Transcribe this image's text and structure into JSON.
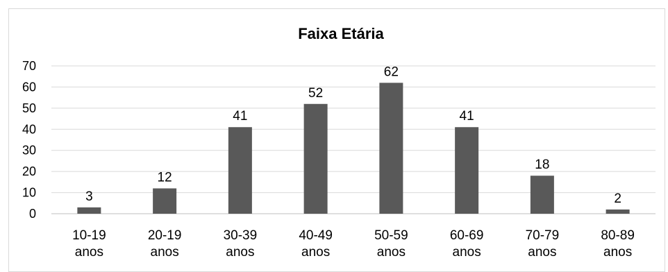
{
  "chart_data": {
    "type": "bar",
    "title": "Faixa Etária",
    "categories": [
      [
        "10-19",
        "anos"
      ],
      [
        "20-19",
        "anos"
      ],
      [
        "30-39",
        "anos"
      ],
      [
        "40-49",
        "anos"
      ],
      [
        "50-59",
        "anos"
      ],
      [
        "60-69",
        "anos"
      ],
      [
        "70-79",
        "anos"
      ],
      [
        "80-89",
        "anos"
      ]
    ],
    "values": [
      3,
      12,
      41,
      52,
      62,
      41,
      18,
      2
    ],
    "ylim": [
      0,
      70
    ],
    "yticks": [
      0,
      10,
      20,
      30,
      40,
      50,
      60,
      70
    ],
    "grid": true,
    "legend": "none",
    "bar_color": "#595959",
    "grid_color": "#d9d9d9"
  }
}
